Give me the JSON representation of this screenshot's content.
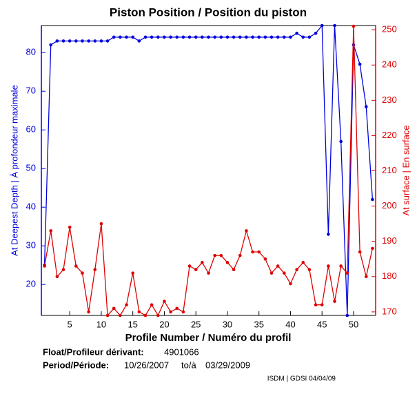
{
  "chart_data": {
    "type": "line",
    "title": "Piston Position / Position du piston",
    "xlabel": "Profile Number / Numéro du profil",
    "ylabel": "At Deepest Depth | À profondeur maximale",
    "y2label": "At surface | En surface",
    "x": [
      1,
      2,
      3,
      4,
      5,
      6,
      7,
      8,
      9,
      10,
      11,
      12,
      13,
      14,
      15,
      16,
      17,
      18,
      19,
      20,
      21,
      22,
      23,
      24,
      25,
      26,
      27,
      28,
      29,
      30,
      31,
      32,
      33,
      34,
      35,
      36,
      37,
      38,
      39,
      40,
      41,
      42,
      43,
      44,
      45,
      46,
      47,
      48,
      49,
      50,
      51,
      52,
      53
    ],
    "series": [
      {
        "name": "At Deepest Depth",
        "color": "#0000dd",
        "axis": "y",
        "values": [
          25,
          82,
          83,
          83,
          83,
          83,
          83,
          83,
          83,
          83,
          83,
          84,
          84,
          84,
          84,
          83,
          84,
          84,
          84,
          84,
          84,
          84,
          84,
          84,
          84,
          84,
          84,
          84,
          84,
          84,
          84,
          84,
          84,
          84,
          84,
          84,
          84,
          84,
          84,
          84,
          85,
          84,
          84,
          85,
          87,
          33,
          87,
          57,
          12,
          82,
          77,
          66,
          42
        ]
      },
      {
        "name": "At surface",
        "color": "#dd0000",
        "axis": "y2",
        "values": [
          183,
          193,
          180,
          182,
          194,
          183,
          181,
          170,
          182,
          195,
          169,
          171,
          169,
          172,
          181,
          170,
          169,
          172,
          169,
          173,
          170,
          171,
          170,
          183,
          182,
          184,
          181,
          186,
          186,
          184,
          182,
          186,
          193,
          187,
          187,
          185,
          181,
          183,
          181,
          178,
          182,
          184,
          182,
          172,
          172,
          183,
          173,
          183,
          181,
          251,
          187,
          180,
          188
        ]
      }
    ],
    "xlim": [
      0.5,
      53.5
    ],
    "xticks": [
      5,
      10,
      15,
      20,
      25,
      30,
      35,
      40,
      45,
      50
    ],
    "ylim": [
      12,
      87
    ],
    "yticks": [
      20,
      30,
      40,
      50,
      60,
      70,
      80
    ],
    "y2lim": [
      169,
      251.2
    ],
    "y2ticks": [
      170,
      180,
      190,
      200,
      210,
      220,
      230,
      240,
      250
    ],
    "footer": {
      "float_label": "Float/Profileur dérivant:",
      "float_id": "4901066",
      "period_label": "Period/Période:",
      "start": "10/26/2007",
      "to": "to/à",
      "end": "03/29/2009",
      "credit": "ISDM | GDSI 04/04/09"
    }
  }
}
